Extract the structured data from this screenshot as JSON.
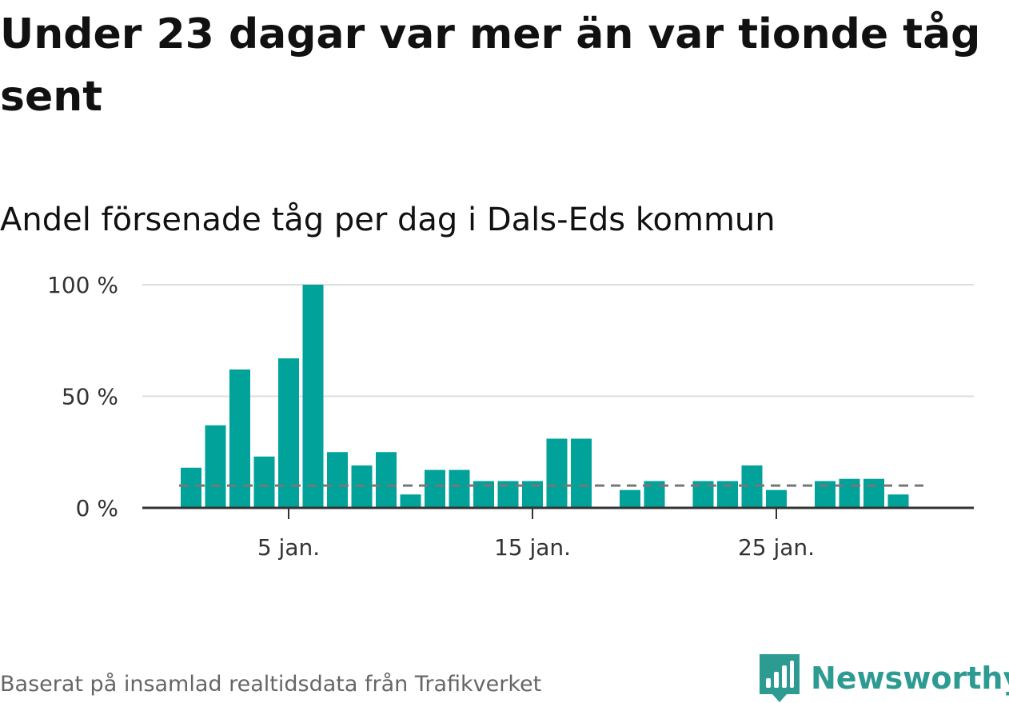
{
  "title": "Under 23 dagar var mer än var tionde tåg sent",
  "subtitle": "Andel försenade tåg per dag i Dals-Eds kommun",
  "footer": "Baserat på insamlad realtidsdata från Trafikverket",
  "brand": "Newsworthy",
  "colors": {
    "bar": "#00a29a",
    "reference": "#777777",
    "grid": "#dddddd",
    "brand": "#2e9b92"
  },
  "chart_data": {
    "type": "bar",
    "title": "Andel försenade tåg per dag i Dals-Eds kommun",
    "xlabel": "",
    "ylabel": "",
    "x": [
      "1 jan.",
      "2 jan.",
      "3 jan.",
      "4 jan.",
      "5 jan.",
      "6 jan.",
      "7 jan.",
      "8 jan.",
      "9 jan.",
      "10 jan.",
      "11 jan.",
      "12 jan.",
      "13 jan.",
      "14 jan.",
      "15 jan.",
      "16 jan.",
      "17 jan.",
      "18 jan.",
      "19 jan.",
      "20 jan.",
      "21 jan.",
      "22 jan.",
      "23 jan.",
      "24 jan.",
      "25 jan.",
      "26 jan.",
      "27 jan.",
      "28 jan.",
      "29 jan.",
      "30 jan."
    ],
    "values": [
      18,
      37,
      62,
      23,
      67,
      100,
      25,
      19,
      25,
      6,
      17,
      17,
      12,
      12,
      12,
      31,
      31,
      null,
      8,
      12,
      null,
      12,
      12,
      19,
      8,
      null,
      12,
      13,
      13,
      6
    ],
    "unit": "%",
    "ylim": [
      0,
      100
    ],
    "yticks": [
      0,
      50,
      100
    ],
    "ytick_labels": [
      "0 %",
      "50 %",
      "100 %"
    ],
    "xticks": [
      "5 jan.",
      "15 jan.",
      "25 jan."
    ],
    "reference_line": 10,
    "grid": true
  }
}
